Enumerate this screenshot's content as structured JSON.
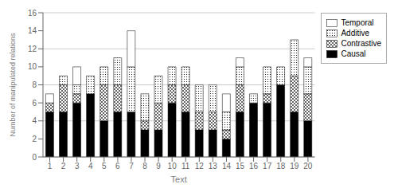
{
  "chart_data": {
    "type": "bar",
    "stacked": true,
    "grid": true,
    "legend": "upper right",
    "xlabel": "Text",
    "ylabel": "Number of manipulated relations",
    "categories": [
      1,
      2,
      3,
      4,
      5,
      6,
      7,
      8,
      9,
      10,
      11,
      12,
      13,
      14,
      15,
      16,
      17,
      18,
      19,
      20
    ],
    "ylim": [
      0,
      16
    ],
    "yticks": [
      0,
      2,
      4,
      6,
      8,
      10,
      12,
      14,
      16
    ],
    "series": [
      {
        "name": "Causal",
        "color": "#000000",
        "values": [
          5,
          5,
          6,
          7,
          4,
          5,
          5,
          3,
          3,
          6,
          5,
          3,
          3,
          2,
          5,
          6,
          6,
          8,
          5,
          4
        ]
      },
      {
        "name": "Contrastive",
        "color": "#ffffff",
        "values": [
          1,
          3,
          1,
          0,
          4,
          3,
          0,
          1,
          3,
          2,
          3,
          2,
          2,
          1,
          3,
          0,
          1,
          0,
          4,
          3
        ]
      },
      {
        "name": "Additive",
        "color": "#ffffff",
        "values": [
          0,
          1,
          1,
          2,
          2,
          3,
          5,
          3,
          3,
          2,
          2,
          3,
          3,
          2,
          2,
          1,
          3,
          2,
          4,
          3
        ]
      },
      {
        "name": "Temporal",
        "color": "#ffffff",
        "values": [
          1,
          0,
          2,
          0,
          0,
          0,
          4,
          0,
          0,
          0,
          0,
          0,
          0,
          2,
          1,
          0,
          0,
          0,
          0,
          1
        ]
      }
    ]
  }
}
